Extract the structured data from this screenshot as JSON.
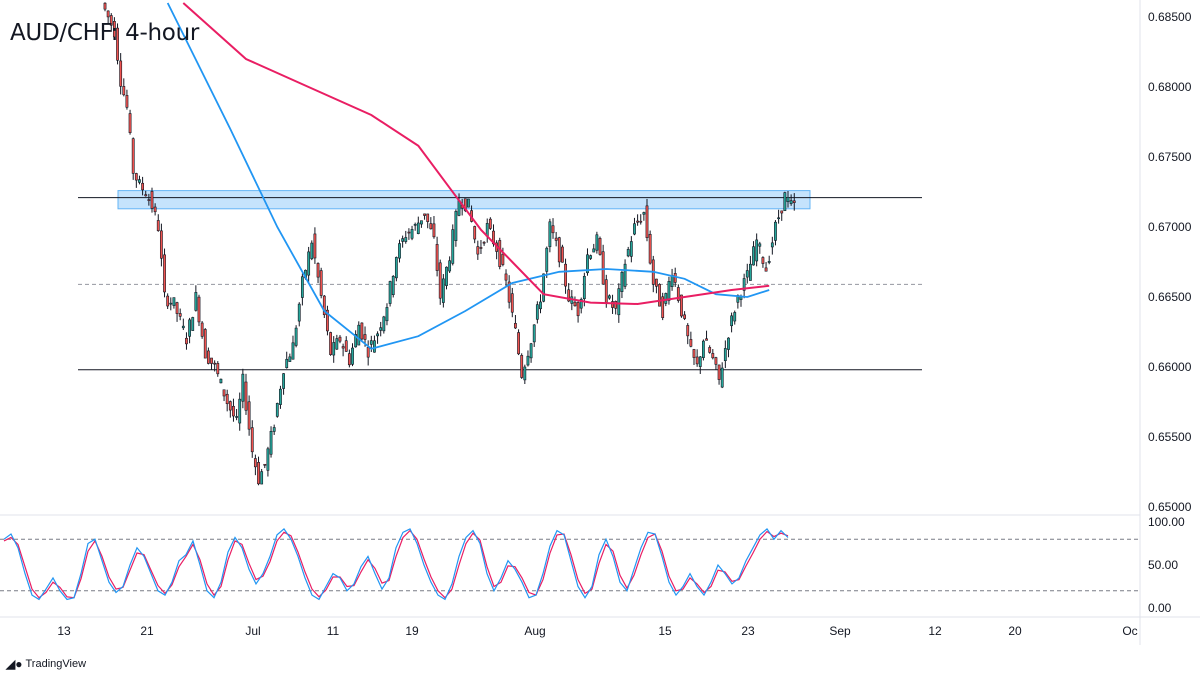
{
  "title": "AUD/CHF: 4-hour",
  "branding": {
    "logo_icon": "tradingview-logo-icon",
    "text": "TradingView"
  },
  "colors": {
    "up": "#26a69a",
    "down": "#ef5350",
    "candle": "#131722",
    "ma_fast": "#2196f3",
    "ma_slow": "#e91e63",
    "zone_fill": "#bbdefb",
    "zone_edge": "#64b5f6",
    "stoch_k": "#2196f3",
    "stoch_d": "#e91e63"
  },
  "chart_data": {
    "type": "candlestick",
    "symbol": "AUD/CHF",
    "timeframe": "4-hour",
    "price_axis": {
      "ticks": [
        "0.68500",
        "0.68000",
        "0.67500",
        "0.67000",
        "0.66500",
        "0.66000",
        "0.65500",
        "0.65000"
      ],
      "range": [
        0.6495,
        0.6855
      ]
    },
    "time_axis": {
      "ticks": [
        "13",
        "21",
        "Jul",
        "11",
        "19",
        "Aug",
        "15",
        "23",
        "Sep",
        "12",
        "20",
        "Oc"
      ]
    },
    "price_path": [
      [
        0,
        0.686
      ],
      [
        4,
        0.684
      ],
      [
        6,
        0.6805
      ],
      [
        8,
        0.6785
      ],
      [
        10,
        0.674
      ],
      [
        12,
        0.673
      ],
      [
        14,
        0.6725
      ],
      [
        16,
        0.6715
      ],
      [
        18,
        0.67
      ],
      [
        20,
        0.665
      ],
      [
        23,
        0.6645
      ],
      [
        27,
        0.662
      ],
      [
        30,
        0.665
      ],
      [
        33,
        0.661
      ],
      [
        36,
        0.66
      ],
      [
        40,
        0.6575
      ],
      [
        43,
        0.656
      ],
      [
        45,
        0.659
      ],
      [
        48,
        0.654
      ],
      [
        50,
        0.652
      ],
      [
        52,
        0.653
      ],
      [
        55,
        0.656
      ],
      [
        58,
        0.66
      ],
      [
        61,
        0.6615
      ],
      [
        64,
        0.666
      ],
      [
        67,
        0.669
      ],
      [
        70,
        0.665
      ],
      [
        73,
        0.661
      ],
      [
        76,
        0.662
      ],
      [
        79,
        0.6605
      ],
      [
        82,
        0.663
      ],
      [
        85,
        0.6612
      ],
      [
        88,
        0.6625
      ],
      [
        91,
        0.6645
      ],
      [
        94,
        0.668
      ],
      [
        97,
        0.6695
      ],
      [
        100,
        0.67
      ],
      [
        103,
        0.671
      ],
      [
        106,
        0.669
      ],
      [
        108,
        0.665
      ],
      [
        111,
        0.668
      ],
      [
        114,
        0.672
      ],
      [
        117,
        0.6715
      ],
      [
        120,
        0.668
      ],
      [
        123,
        0.67
      ],
      [
        126,
        0.6685
      ],
      [
        129,
        0.666
      ],
      [
        132,
        0.6625
      ],
      [
        134,
        0.6595
      ],
      [
        137,
        0.662
      ],
      [
        140,
        0.665
      ],
      [
        143,
        0.67
      ],
      [
        146,
        0.668
      ],
      [
        149,
        0.665
      ],
      [
        152,
        0.664
      ],
      [
        155,
        0.668
      ],
      [
        158,
        0.669
      ],
      [
        161,
        0.665
      ],
      [
        164,
        0.664
      ],
      [
        167,
        0.6675
      ],
      [
        170,
        0.67
      ],
      [
        173,
        0.671
      ],
      [
        176,
        0.666
      ],
      [
        179,
        0.664
      ],
      [
        182,
        0.667
      ],
      [
        185,
        0.664
      ],
      [
        188,
        0.661
      ],
      [
        190,
        0.66
      ],
      [
        192,
        0.662
      ],
      [
        195,
        0.6605
      ],
      [
        197,
        0.659
      ],
      [
        200,
        0.6625
      ],
      [
        203,
        0.665
      ],
      [
        206,
        0.6665
      ],
      [
        209,
        0.669
      ],
      [
        212,
        0.667
      ],
      [
        215,
        0.67
      ],
      [
        218,
        0.6722
      ],
      [
        220,
        0.6715
      ]
    ],
    "moving_averages": [
      {
        "name": "",
        "color": "#2196f3",
        "points": [
          [
            20,
            0.686
          ],
          [
            40,
            0.677
          ],
          [
            55,
            0.67
          ],
          [
            70,
            0.664
          ],
          [
            85,
            0.6613
          ],
          [
            100,
            0.6622
          ],
          [
            115,
            0.664
          ],
          [
            130,
            0.666
          ],
          [
            145,
            0.6668
          ],
          [
            160,
            0.667
          ],
          [
            175,
            0.6668
          ],
          [
            185,
            0.6663
          ],
          [
            195,
            0.6652
          ],
          [
            205,
            0.665
          ],
          [
            212,
            0.6655
          ]
        ]
      },
      {
        "name": "",
        "color": "#e91e63",
        "points": [
          [
            25,
            0.686
          ],
          [
            45,
            0.682
          ],
          [
            65,
            0.68
          ],
          [
            85,
            0.678
          ],
          [
            100,
            0.6758
          ],
          [
            110,
            0.6728
          ],
          [
            120,
            0.6698
          ],
          [
            130,
            0.6675
          ],
          [
            140,
            0.6652
          ],
          [
            155,
            0.6646
          ],
          [
            170,
            0.6645
          ],
          [
            185,
            0.665
          ],
          [
            200,
            0.6655
          ],
          [
            212,
            0.6658
          ]
        ]
      }
    ],
    "resistance_zone": [
      0.6713,
      0.6726
    ],
    "horizontal_lines": [
      {
        "value": 0.6721,
        "style": "solid"
      },
      {
        "value": 0.6659,
        "style": "dashed"
      },
      {
        "value": 0.6598,
        "style": "solid"
      }
    ],
    "stochastic": {
      "ticks": [
        "100.00",
        "50.00",
        "0.00"
      ],
      "range": [
        0,
        100
      ],
      "levels": [
        80,
        20
      ],
      "k": [
        80,
        86,
        70,
        40,
        15,
        10,
        22,
        35,
        20,
        10,
        12,
        40,
        75,
        80,
        55,
        30,
        18,
        25,
        50,
        70,
        60,
        40,
        20,
        15,
        30,
        55,
        62,
        78,
        50,
        20,
        12,
        30,
        65,
        82,
        70,
        45,
        28,
        40,
        60,
        85,
        92,
        80,
        60,
        35,
        15,
        10,
        25,
        40,
        35,
        20,
        28,
        48,
        60,
        40,
        22,
        35,
        70,
        88,
        92,
        75,
        50,
        30,
        15,
        10,
        28,
        60,
        82,
        90,
        75,
        40,
        20,
        35,
        55,
        45,
        30,
        12,
        15,
        40,
        72,
        90,
        85,
        55,
        25,
        12,
        25,
        62,
        80,
        60,
        30,
        20,
        45,
        70,
        88,
        86,
        60,
        30,
        15,
        25,
        40,
        25,
        15,
        30,
        50,
        40,
        28,
        35,
        55,
        70,
        85,
        92,
        80,
        90,
        82
      ],
      "d": [
        78,
        82,
        74,
        48,
        22,
        12,
        18,
        30,
        24,
        13,
        12,
        34,
        66,
        78,
        60,
        36,
        22,
        24,
        44,
        64,
        62,
        44,
        26,
        17,
        27,
        48,
        60,
        74,
        56,
        28,
        15,
        25,
        56,
        78,
        74,
        52,
        33,
        37,
        54,
        78,
        88,
        84,
        65,
        42,
        22,
        13,
        21,
        36,
        36,
        25,
        26,
        42,
        56,
        46,
        29,
        32,
        60,
        82,
        90,
        80,
        57,
        36,
        20,
        12,
        22,
        50,
        75,
        87,
        79,
        48,
        25,
        30,
        49,
        48,
        35,
        18,
        15,
        33,
        64,
        85,
        86,
        62,
        33,
        17,
        22,
        52,
        74,
        66,
        38,
        23,
        38,
        62,
        82,
        86,
        66,
        37,
        20,
        22,
        35,
        28,
        18,
        25,
        44,
        42,
        31,
        33,
        49,
        64,
        80,
        89,
        83,
        87,
        84
      ]
    }
  }
}
